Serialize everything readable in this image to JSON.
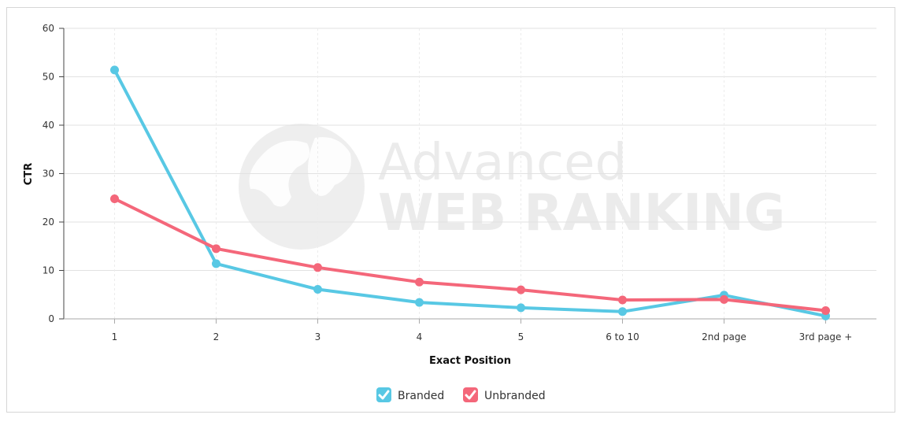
{
  "chart_data": {
    "type": "line",
    "categories": [
      "1",
      "2",
      "3",
      "4",
      "5",
      "6 to 10",
      "2nd page",
      "3rd page +"
    ],
    "series": [
      {
        "name": "Branded",
        "color": "#58c8e4",
        "values": [
          51.4,
          11.4,
          6.1,
          3.4,
          2.3,
          1.5,
          4.9,
          0.6
        ]
      },
      {
        "name": "Unbranded",
        "color": "#f4677a",
        "values": [
          24.8,
          14.5,
          10.6,
          7.6,
          6.0,
          3.9,
          4.0,
          1.7
        ]
      }
    ],
    "xlabel": "Exact Position",
    "ylabel": "CTR",
    "ylim": [
      0,
      60
    ],
    "yticks": [
      0,
      10,
      20,
      30,
      40,
      50,
      60
    ],
    "grid": true,
    "legend": "bottom-center"
  },
  "watermark": {
    "line1": "Advanced",
    "line2": "WEB RANKING"
  }
}
